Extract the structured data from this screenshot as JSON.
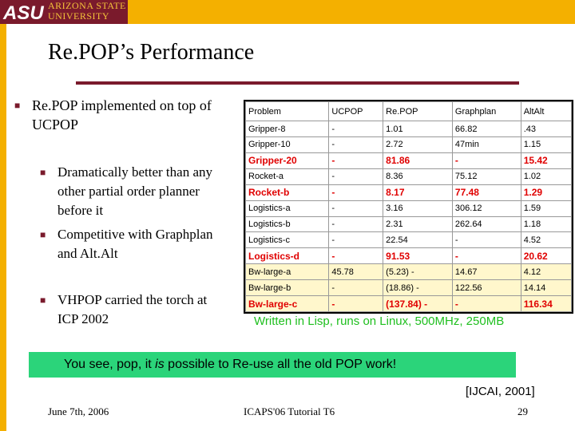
{
  "header": {
    "logo_line1": "ARIZONA STATE",
    "logo_line2": "UNIVERSITY",
    "logo_mark": "ASU",
    "brand_color": "#7a1a2c",
    "accent_color": "#f4b000"
  },
  "title": "Re.POP’s Performance",
  "bullets": {
    "main1": "Re.POP implemented on top of UCPOP",
    "sub1": "Dramatically better than any other partial order planner before it",
    "sub2": "Competitive with Graphplan and Alt.Alt",
    "sub3": "VHPOP carried the torch at ICP 2002"
  },
  "table": {
    "headers": [
      "Problem",
      "UCPOP",
      "Re.POP",
      "Graphplan",
      "AltAlt"
    ],
    "rows": [
      {
        "cells": [
          "Gripper-8",
          "-",
          "1.01",
          "66.82",
          ".43"
        ],
        "highlight": false,
        "yellow": false
      },
      {
        "cells": [
          "Gripper-10",
          "-",
          "2.72",
          "47min",
          "1.15"
        ],
        "highlight": false,
        "yellow": false
      },
      {
        "cells": [
          "Gripper-20",
          "-",
          "81.86",
          "-",
          "15.42"
        ],
        "highlight": true,
        "yellow": false
      },
      {
        "cells": [
          "Rocket-a",
          "-",
          "8.36",
          "75.12",
          "1.02"
        ],
        "highlight": false,
        "yellow": false
      },
      {
        "cells": [
          "Rocket-b",
          "-",
          "8.17",
          "77.48",
          "1.29"
        ],
        "highlight": true,
        "yellow": false
      },
      {
        "cells": [
          "Logistics-a",
          "-",
          "3.16",
          "306.12",
          "1.59"
        ],
        "highlight": false,
        "yellow": false
      },
      {
        "cells": [
          "Logistics-b",
          "-",
          "2.31",
          "262.64",
          "1.18"
        ],
        "highlight": false,
        "yellow": false
      },
      {
        "cells": [
          "Logistics-c",
          "-",
          "22.54",
          "-",
          "4.52"
        ],
        "highlight": false,
        "yellow": false
      },
      {
        "cells": [
          "Logistics-d",
          "-",
          "91.53",
          "-",
          "20.62"
        ],
        "highlight": true,
        "yellow": false
      },
      {
        "cells": [
          "Bw-large-a",
          "45.78",
          "(5.23) -",
          "14.67",
          "4.12"
        ],
        "highlight": false,
        "yellow": true
      },
      {
        "cells": [
          "Bw-large-b",
          "-",
          "(18.86) -",
          "122.56",
          "14.14"
        ],
        "highlight": false,
        "yellow": true
      },
      {
        "cells": [
          "Bw-large-c",
          "-",
          "(137.84) -",
          "-",
          "116.34"
        ],
        "highlight": true,
        "yellow": true
      }
    ]
  },
  "caption": "Written in Lisp, runs on Linux, 500MHz, 250MB",
  "banner": {
    "text_pre": "You see, pop,  it ",
    "text_em": "is",
    "text_post": " possible to Re-use all the old POP work!"
  },
  "citation": "[IJCAI, 2001]",
  "footer": {
    "date": "June 7th, 2006",
    "event": "ICAPS'06 Tutorial T6",
    "page": "29"
  }
}
